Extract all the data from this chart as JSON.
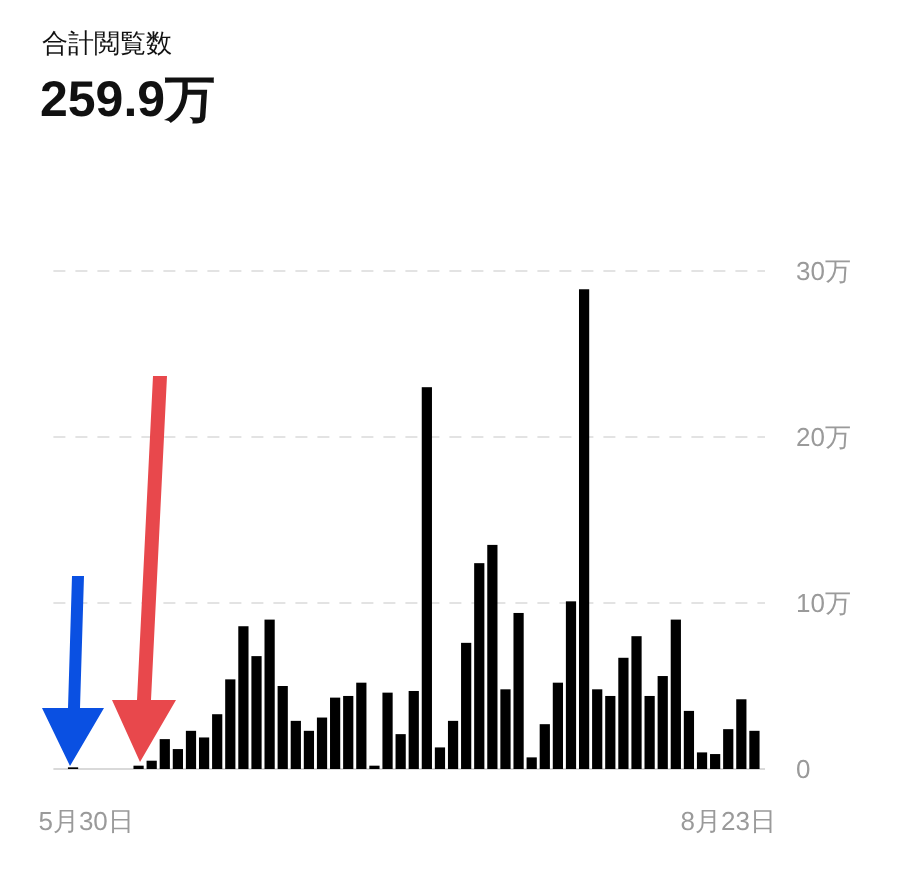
{
  "chart_data": {
    "type": "bar",
    "title": "合計閲覧数",
    "subtitle": "259.9万",
    "categories": [
      null,
      null,
      "5月30日",
      null,
      null,
      null,
      null,
      null,
      null,
      null,
      null,
      null,
      null,
      null,
      null,
      null,
      null,
      null,
      null,
      null,
      null,
      null,
      null,
      null,
      null,
      null,
      null,
      null,
      null,
      null,
      null,
      null,
      null,
      null,
      null,
      null,
      null,
      null,
      null,
      null,
      null,
      null,
      null,
      null,
      null,
      null,
      null,
      null,
      null,
      null,
      null,
      "8月23日",
      null,
      null
    ],
    "values": [
      0,
      0.1,
      0,
      0,
      0,
      0,
      0.2,
      0.5,
      1.8,
      1.2,
      2.3,
      1.9,
      3.3,
      5.4,
      8.6,
      6.8,
      9.0,
      5.0,
      2.9,
      2.3,
      3.1,
      4.3,
      4.4,
      5.2,
      0.2,
      4.6,
      2.1,
      4.7,
      23.0,
      1.3,
      2.9,
      7.6,
      12.4,
      13.5,
      4.8,
      9.4,
      0.7,
      2.7,
      5.2,
      10.1,
      28.9,
      4.8,
      4.4,
      6.7,
      8.0,
      4.4,
      5.6,
      9.0,
      3.5,
      1.0,
      0.9,
      2.4,
      4.2,
      2.3
    ],
    "color": "#000000",
    "ylim": [
      0,
      30
    ],
    "yticks": [
      0,
      {
        "value": 10,
        "label": "10万"
      },
      {
        "value": 20,
        "label": "20万"
      },
      {
        "value": 30,
        "label": "30万"
      }
    ],
    "grid": "y"
  }
}
